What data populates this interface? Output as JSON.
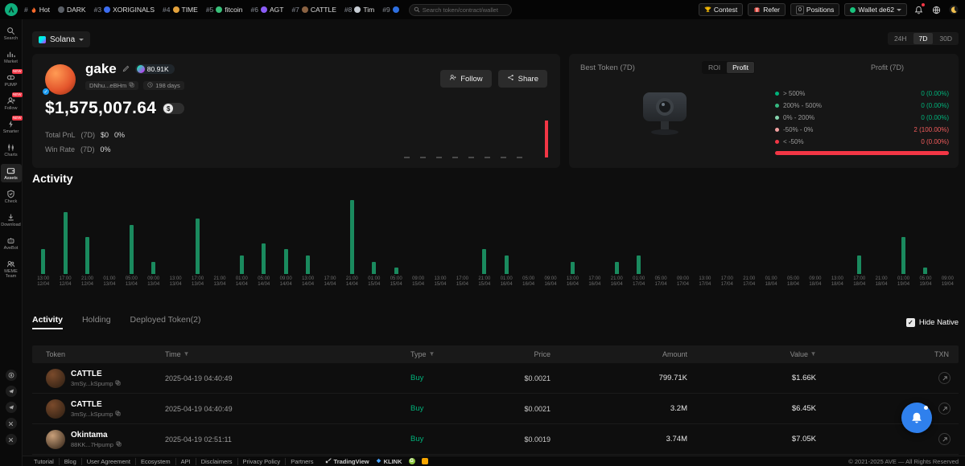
{
  "topbar": {
    "hot_items": [
      {
        "rank": "#",
        "label": "Hot",
        "icon": "flame",
        "color": "#ff6a2b"
      },
      {
        "rank": "",
        "label": "DARK",
        "icon": "coin",
        "color": "#5a5f66"
      },
      {
        "rank": "#3",
        "label": "XORIGINALS",
        "icon": "coin",
        "color": "#3c6df0"
      },
      {
        "rank": "#4",
        "label": "TIME",
        "icon": "coin",
        "color": "#e3a23c"
      },
      {
        "rank": "#5",
        "label": "fitcoin",
        "icon": "coin",
        "color": "#39c07a"
      },
      {
        "rank": "#6",
        "label": "AGT",
        "icon": "coin",
        "color": "#8a5cf6"
      },
      {
        "rank": "#7",
        "label": "CATTLE",
        "icon": "coin",
        "color": "#8a6242"
      },
      {
        "rank": "#8",
        "label": "Tim",
        "icon": "coin",
        "color": "#c7cdd4"
      },
      {
        "rank": "#9",
        "label": "",
        "icon": "coin",
        "color": "#2e6fe0"
      }
    ],
    "search": {
      "placeholder": "Search token/contract/wallet"
    },
    "contest_label": "Contest",
    "refer_label": "Refer",
    "positions_count": "0",
    "positions_label": "Positions",
    "wallet_label": "Wallet de62"
  },
  "sidebar": {
    "active": "Assets",
    "items": [
      {
        "label": "Search",
        "icon": "search",
        "badge": ""
      },
      {
        "label": "Market",
        "icon": "market",
        "badge": ""
      },
      {
        "label": "PUMP",
        "icon": "pump",
        "badge": "NEW"
      },
      {
        "label": "Follow",
        "icon": "follow",
        "badge": "NEW"
      },
      {
        "label": "Smarter",
        "icon": "smarter",
        "badge": "NEW"
      },
      {
        "label": "Charts",
        "icon": "charts",
        "badge": ""
      },
      {
        "label": "Assets",
        "icon": "assets",
        "badge": ""
      },
      {
        "label": "Check",
        "icon": "check",
        "badge": ""
      },
      {
        "label": "Download",
        "icon": "download",
        "badge": ""
      },
      {
        "label": "AveBot",
        "icon": "avebot",
        "badge": ""
      },
      {
        "label": "MEME Team",
        "icon": "team",
        "badge": ""
      }
    ],
    "social": [
      "coin",
      "telegram",
      "telegram",
      "x",
      "x"
    ]
  },
  "chain": {
    "label": "Solana"
  },
  "range_toggle": {
    "options": [
      "24H",
      "7D",
      "30D"
    ],
    "selected": "7D"
  },
  "profile": {
    "name": "gake",
    "sol_balance": "80.91K",
    "address": "DNhu...eBHm",
    "age": "198 days",
    "follow_label": "Follow",
    "share_label": "Share",
    "balance": "$1,575,007.64",
    "currency_symbol": "$",
    "pnl": {
      "label": "Total PnL",
      "period": "(7D)",
      "value": "$0",
      "pct": "0%"
    },
    "win_rate": {
      "label": "Win Rate",
      "period": "(7D)",
      "value": "0%"
    }
  },
  "best_token": {
    "title": "Best Token  (7D)",
    "toggle": {
      "options": [
        "ROI",
        "Profit"
      ],
      "selected": "Profit"
    },
    "legend_title": "Profit  (7D)",
    "legend": [
      {
        "label": "> 500%",
        "value": "0 (0.00%)",
        "dot": "#00b27a",
        "value_color": "#00b27a"
      },
      {
        "label": "200% - 500%",
        "value": "0 (0.00%)",
        "dot": "#35b880",
        "value_color": "#00b27a"
      },
      {
        "label": "0% - 200%",
        "value": "0 (0.00%)",
        "dot": "#86d4ae",
        "value_color": "#00b27a"
      },
      {
        "label": "-50% - 0%",
        "value": "2 (100.00%)",
        "dot": "#f2a0a0",
        "value_color": "#f25c5c"
      },
      {
        "label": "< -50%",
        "value": "0 (0.00%)",
        "dot": "#f23645",
        "value_color": "#f25c5c"
      }
    ],
    "bar_color": "#f23645"
  },
  "activity": {
    "title": "Activity"
  },
  "chart_data": {
    "type": "bar",
    "title": "Activity",
    "xlabel": "",
    "ylabel": "",
    "bar_color": "#1a8a5e",
    "ylim": [
      0,
      12
    ],
    "legend_position": "none",
    "grid": false,
    "categories": [
      [
        "13:00",
        "12/04"
      ],
      [
        "17:00",
        "12/04"
      ],
      [
        "21:00",
        "12/04"
      ],
      [
        "01:00",
        "13/04"
      ],
      [
        "05:00",
        "13/04"
      ],
      [
        "09:00",
        "13/04"
      ],
      [
        "13:00",
        "13/04"
      ],
      [
        "17:00",
        "13/04"
      ],
      [
        "21:00",
        "13/04"
      ],
      [
        "01:00",
        "14/04"
      ],
      [
        "05:00",
        "14/04"
      ],
      [
        "09:00",
        "14/04"
      ],
      [
        "13:00",
        "14/04"
      ],
      [
        "17:00",
        "14/04"
      ],
      [
        "21:00",
        "14/04"
      ],
      [
        "01:00",
        "15/04"
      ],
      [
        "05:00",
        "15/04"
      ],
      [
        "09:00",
        "15/04"
      ],
      [
        "13:00",
        "15/04"
      ],
      [
        "17:00",
        "15/04"
      ],
      [
        "21:00",
        "15/04"
      ],
      [
        "01:00",
        "16/04"
      ],
      [
        "05:00",
        "16/04"
      ],
      [
        "09:00",
        "16/04"
      ],
      [
        "13:00",
        "16/04"
      ],
      [
        "17:00",
        "16/04"
      ],
      [
        "21:00",
        "16/04"
      ],
      [
        "01:00",
        "17/04"
      ],
      [
        "05:00",
        "17/04"
      ],
      [
        "09:00",
        "17/04"
      ],
      [
        "13:00",
        "17/04"
      ],
      [
        "17:00",
        "17/04"
      ],
      [
        "21:00",
        "17/04"
      ],
      [
        "01:00",
        "18/04"
      ],
      [
        "05:00",
        "18/04"
      ],
      [
        "09:00",
        "18/04"
      ],
      [
        "13:00",
        "18/04"
      ],
      [
        "17:00",
        "18/04"
      ],
      [
        "21:00",
        "18/04"
      ],
      [
        "01:00",
        "19/04"
      ],
      [
        "05:00",
        "19/04"
      ],
      [
        "09:00",
        "19/04"
      ]
    ],
    "values": [
      4,
      10,
      6,
      0,
      8,
      2,
      0,
      9,
      0,
      3,
      5,
      4,
      3,
      0,
      12,
      2,
      1,
      0,
      0,
      0,
      4,
      3,
      0,
      0,
      2,
      0,
      2,
      3,
      0,
      0,
      0,
      0,
      0,
      0,
      0,
      0,
      0,
      3,
      0,
      6,
      1,
      0
    ]
  },
  "tabs": {
    "items": [
      "Activity",
      "Holding",
      "Deployed Token(2)"
    ],
    "selected": "Activity",
    "hide_native": {
      "label": "Hide Native",
      "checked": true
    }
  },
  "table": {
    "columns": [
      {
        "label": "Token",
        "filter": false,
        "align": "left"
      },
      {
        "label": "Time",
        "filter": true,
        "align": "left"
      },
      {
        "label": "Type",
        "filter": true,
        "align": "left"
      },
      {
        "label": "Price",
        "filter": false,
        "align": "right"
      },
      {
        "label": "Amount",
        "filter": false,
        "align": "right"
      },
      {
        "label": "Value",
        "filter": true,
        "align": "right"
      },
      {
        "label": "TXN",
        "filter": false,
        "align": "right"
      }
    ],
    "rows": [
      {
        "token": "CATTLE",
        "address": "3mSy...kSpump",
        "avatar": "#7a4a2b",
        "time": "2025-04-19 04:40:49",
        "type": "Buy",
        "type_color": "#00b27a",
        "price": "$0.0021",
        "amount": "799.71K",
        "value": "$1.66K"
      },
      {
        "token": "CATTLE",
        "address": "3mSy...kSpump",
        "avatar": "#7a4a2b",
        "time": "2025-04-19 04:40:49",
        "type": "Buy",
        "type_color": "#00b27a",
        "price": "$0.0021",
        "amount": "3.2M",
        "value": "$6.45K"
      },
      {
        "token": "Okintama",
        "address": "88KK...7Hpump",
        "avatar": "#c9a07a",
        "time": "2025-04-19 02:51:11",
        "type": "Buy",
        "type_color": "#00b27a",
        "price": "$0.0019",
        "amount": "3.74M",
        "value": "$7.05K"
      }
    ]
  },
  "footer": {
    "links": [
      "Tutorial",
      "Blog",
      "User Agreement",
      "Ecosystem",
      "API",
      "Disclaimers",
      "Privacy Policy",
      "Partners"
    ],
    "tradingview_label": "TradingView",
    "klink_label": "KLINK",
    "copyright": "© 2021-2025 AVE — All Rights Reserved"
  }
}
